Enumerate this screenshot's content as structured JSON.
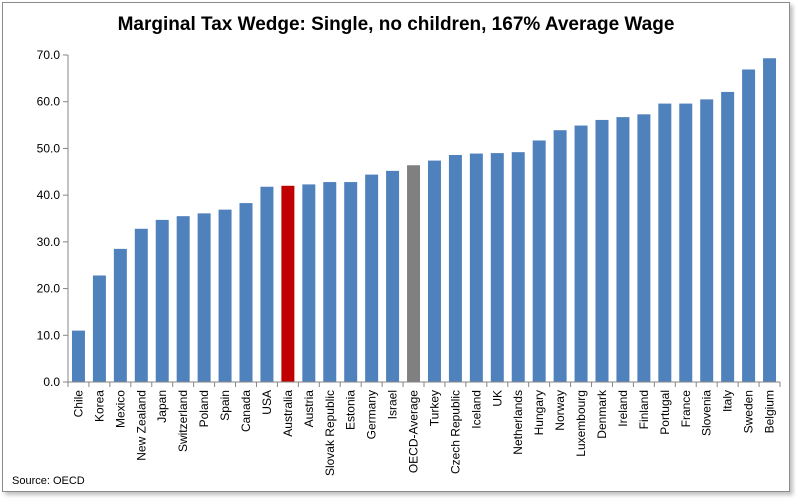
{
  "chart_data": {
    "type": "bar",
    "title": "Marginal Tax Wedge: Single, no children, 167% Average Wage",
    "xlabel": "",
    "ylabel": "",
    "ylim": [
      0,
      70
    ],
    "yticks": [
      "0.0",
      "10.0",
      "20.0",
      "30.0",
      "40.0",
      "50.0",
      "60.0",
      "70.0"
    ],
    "grid": false,
    "source": "Source: OECD",
    "colors": {
      "default": "#4f81bd",
      "australia": "#c00000",
      "oecd_average": "#808080"
    },
    "categories": [
      "Chile",
      "Korea",
      "Mexico",
      "New Zealand",
      "Japan",
      "Switzerland",
      "Poland",
      "Spain",
      "Canada",
      "USA",
      "Australia",
      "Austria",
      "Slovak Republic",
      "Estonia",
      "Germany",
      "Israel",
      "OECD-Average",
      "Turkey",
      "Czech Republic",
      "Iceland",
      "UK",
      "Netherlands",
      "Hungary",
      "Norway",
      "Luxembourg",
      "Denmark",
      "Ireland",
      "Finland",
      "Portugal",
      "France",
      "Slovenia",
      "Italy",
      "Sweden",
      "Belgium"
    ],
    "values": [
      11.0,
      22.8,
      28.5,
      32.8,
      34.7,
      35.5,
      36.1,
      36.9,
      38.3,
      41.8,
      42.0,
      42.3,
      42.8,
      42.8,
      44.4,
      45.2,
      46.4,
      47.4,
      48.6,
      48.9,
      49.0,
      49.2,
      51.7,
      53.9,
      54.9,
      56.1,
      56.7,
      57.3,
      59.6,
      59.6,
      60.5,
      62.1,
      66.9,
      69.3
    ],
    "highlight": {
      "Australia": "australia",
      "OECD-Average": "oecd_average"
    }
  }
}
